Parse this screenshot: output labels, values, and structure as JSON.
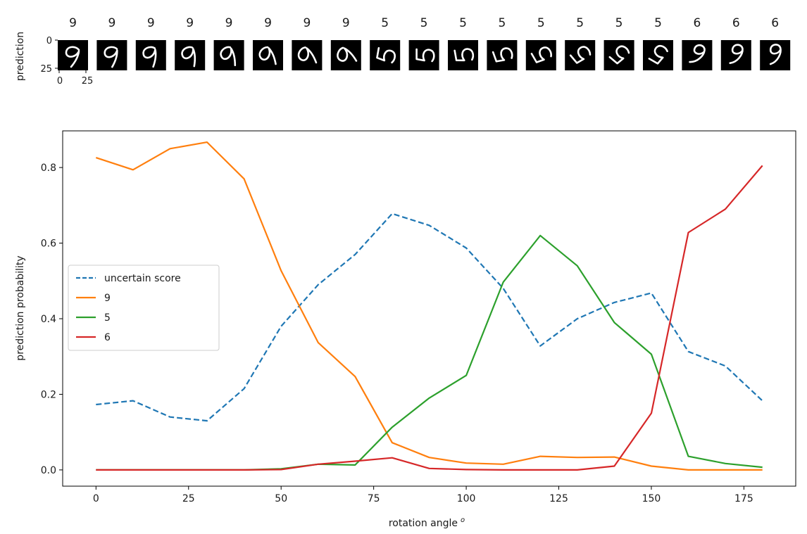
{
  "image_strip": {
    "ylabel": "prediction",
    "predictions": [
      "9",
      "9",
      "9",
      "9",
      "9",
      "9",
      "9",
      "9",
      "5",
      "5",
      "5",
      "5",
      "5",
      "5",
      "5",
      "5",
      "6",
      "6",
      "6"
    ],
    "x_ticks": [
      "0",
      "25"
    ],
    "y_ticks": [
      "0",
      "25"
    ]
  },
  "chart_data": {
    "type": "line",
    "xlabel": "rotation angle",
    "xlabel_superscript": "o",
    "ylabel": "prediction probability",
    "x": [
      0,
      10,
      20,
      30,
      40,
      50,
      60,
      70,
      80,
      90,
      100,
      110,
      120,
      130,
      140,
      150,
      160,
      170,
      180
    ],
    "xlim": [
      -9,
      189
    ],
    "ylim": [
      -0.043,
      0.897
    ],
    "x_ticks": [
      0,
      25,
      50,
      75,
      100,
      125,
      150,
      175
    ],
    "x_tick_labels": [
      "0",
      "25",
      "50",
      "75",
      "100",
      "125",
      "150",
      "175"
    ],
    "y_ticks": [
      0.0,
      0.2,
      0.4,
      0.6,
      0.8
    ],
    "y_tick_labels": [
      "0.0",
      "0.2",
      "0.4",
      "0.6",
      "0.8"
    ],
    "grid": false,
    "legend_position": "center-left",
    "series": [
      {
        "name": "uncertain score",
        "color": "#1f77b4",
        "dashed": true,
        "values": [
          0.173,
          0.183,
          0.14,
          0.13,
          0.215,
          0.38,
          0.49,
          0.57,
          0.678,
          0.647,
          0.587,
          0.48,
          0.328,
          0.4,
          0.443,
          0.468,
          0.313,
          0.275,
          0.183
        ]
      },
      {
        "name": "9",
        "color": "#ff7f0e",
        "dashed": false,
        "values": [
          0.826,
          0.794,
          0.85,
          0.867,
          0.77,
          0.527,
          0.337,
          0.247,
          0.072,
          0.033,
          0.018,
          0.015,
          0.036,
          0.033,
          0.034,
          0.01,
          0.0,
          0.0,
          0.0
        ]
      },
      {
        "name": "5",
        "color": "#2ca02c",
        "dashed": false,
        "values": [
          0.0,
          0.0,
          0.0,
          0.0,
          0.0,
          0.003,
          0.015,
          0.013,
          0.113,
          0.19,
          0.25,
          0.497,
          0.62,
          0.54,
          0.39,
          0.306,
          0.036,
          0.017,
          0.007
        ]
      },
      {
        "name": "6",
        "color": "#d62728",
        "dashed": false,
        "values": [
          0.0,
          0.0,
          0.0,
          0.0,
          0.0,
          0.001,
          0.015,
          0.023,
          0.032,
          0.004,
          0.001,
          0.0,
          0.0,
          0.0,
          0.01,
          0.15,
          0.628,
          0.69,
          0.805
        ]
      }
    ]
  }
}
